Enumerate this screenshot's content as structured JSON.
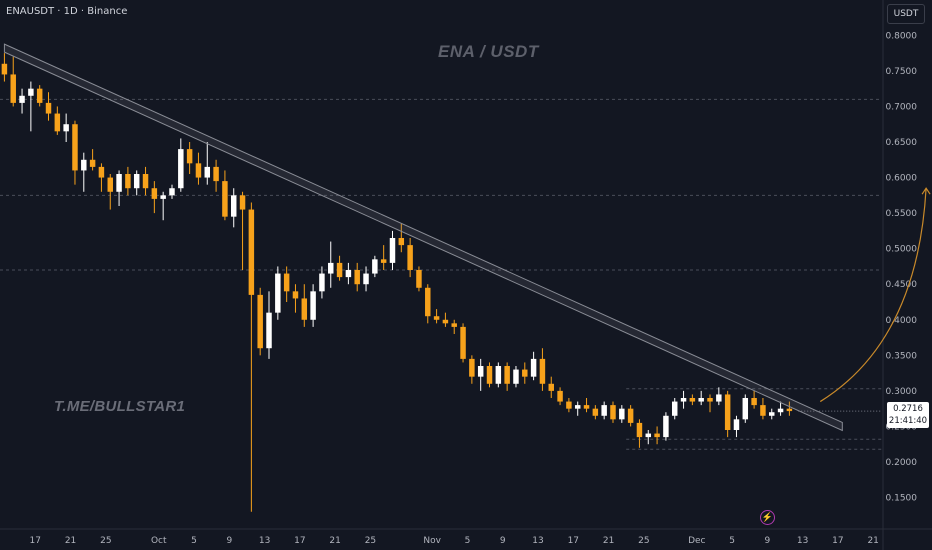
{
  "header": {
    "symbol_info": "ENAUSDT · 1D · Binance",
    "currency": "USDT"
  },
  "chart_title": "ENA / USDT",
  "watermark": "T.ME/BULLSTAR1",
  "price_label": {
    "price": "0.2716",
    "countdown": "21:41:40"
  },
  "colors": {
    "background": "#131722",
    "up": "#ffffff",
    "down": "#f7a21b",
    "grid": "#2a2e39",
    "trendline": "#5d606b",
    "arrow": "#c98a2a",
    "bolt": "#c94fd0"
  },
  "icons": {
    "event_marker": "lightning-bolt-icon"
  },
  "chart_data": {
    "type": "candlestick",
    "y_axis_ticks": [
      "0.8000",
      "0.7500",
      "0.7000",
      "0.6500",
      "0.6000",
      "0.5500",
      "0.5000",
      "0.4500",
      "0.4000",
      "0.3500",
      "0.3000",
      "0.2500",
      "0.2000",
      "0.1500"
    ],
    "ylim": [
      0.11,
      0.83
    ],
    "x_axis_ticks": [
      {
        "label": "17",
        "day": 17
      },
      {
        "label": "21",
        "day": 21
      },
      {
        "label": "25",
        "day": 25
      },
      {
        "label": "Oct",
        "day": 31
      },
      {
        "label": "5",
        "day": 35
      },
      {
        "label": "9",
        "day": 39
      },
      {
        "label": "13",
        "day": 43
      },
      {
        "label": "17",
        "day": 47
      },
      {
        "label": "21",
        "day": 51
      },
      {
        "label": "25",
        "day": 55
      },
      {
        "label": "Nov",
        "day": 62
      },
      {
        "label": "5",
        "day": 66
      },
      {
        "label": "9",
        "day": 70
      },
      {
        "label": "13",
        "day": 74
      },
      {
        "label": "17",
        "day": 78
      },
      {
        "label": "21",
        "day": 82
      },
      {
        "label": "25",
        "day": 86
      },
      {
        "label": "Dec",
        "day": 92
      },
      {
        "label": "5",
        "day": 96
      },
      {
        "label": "9",
        "day": 100
      },
      {
        "label": "13",
        "day": 104
      },
      {
        "label": "17",
        "day": 108
      },
      {
        "label": "21",
        "day": 112
      }
    ],
    "x_range_days": [
      13,
      113
    ],
    "candles": [
      [
        0.76,
        0.775,
        0.735,
        0.745
      ],
      [
        0.745,
        0.77,
        0.7,
        0.705
      ],
      [
        0.705,
        0.725,
        0.69,
        0.715
      ],
      [
        0.715,
        0.735,
        0.665,
        0.725
      ],
      [
        0.725,
        0.73,
        0.7,
        0.705
      ],
      [
        0.705,
        0.72,
        0.68,
        0.69
      ],
      [
        0.69,
        0.7,
        0.66,
        0.665
      ],
      [
        0.665,
        0.69,
        0.65,
        0.675
      ],
      [
        0.675,
        0.68,
        0.59,
        0.61
      ],
      [
        0.61,
        0.635,
        0.58,
        0.625
      ],
      [
        0.625,
        0.64,
        0.61,
        0.615
      ],
      [
        0.615,
        0.62,
        0.58,
        0.6
      ],
      [
        0.6,
        0.605,
        0.555,
        0.58
      ],
      [
        0.58,
        0.61,
        0.56,
        0.605
      ],
      [
        0.605,
        0.615,
        0.575,
        0.585
      ],
      [
        0.585,
        0.61,
        0.575,
        0.605
      ],
      [
        0.605,
        0.615,
        0.575,
        0.585
      ],
      [
        0.585,
        0.595,
        0.55,
        0.57
      ],
      [
        0.57,
        0.58,
        0.54,
        0.575
      ],
      [
        0.575,
        0.59,
        0.57,
        0.585
      ],
      [
        0.585,
        0.655,
        0.58,
        0.64
      ],
      [
        0.64,
        0.65,
        0.605,
        0.62
      ],
      [
        0.62,
        0.635,
        0.59,
        0.6
      ],
      [
        0.6,
        0.65,
        0.59,
        0.615
      ],
      [
        0.615,
        0.625,
        0.58,
        0.595
      ],
      [
        0.595,
        0.61,
        0.54,
        0.545
      ],
      [
        0.545,
        0.585,
        0.53,
        0.575
      ],
      [
        0.575,
        0.58,
        0.47,
        0.555
      ],
      [
        0.555,
        0.565,
        0.13,
        0.435
      ],
      [
        0.435,
        0.445,
        0.35,
        0.36
      ],
      [
        0.36,
        0.44,
        0.345,
        0.41
      ],
      [
        0.41,
        0.475,
        0.4,
        0.465
      ],
      [
        0.465,
        0.475,
        0.425,
        0.44
      ],
      [
        0.44,
        0.45,
        0.41,
        0.43
      ],
      [
        0.43,
        0.45,
        0.39,
        0.4
      ],
      [
        0.4,
        0.45,
        0.39,
        0.44
      ],
      [
        0.44,
        0.475,
        0.43,
        0.465
      ],
      [
        0.465,
        0.51,
        0.445,
        0.48
      ],
      [
        0.48,
        0.49,
        0.455,
        0.46
      ],
      [
        0.46,
        0.48,
        0.45,
        0.47
      ],
      [
        0.47,
        0.48,
        0.44,
        0.45
      ],
      [
        0.45,
        0.475,
        0.44,
        0.465
      ],
      [
        0.465,
        0.49,
        0.46,
        0.485
      ],
      [
        0.485,
        0.505,
        0.47,
        0.48
      ],
      [
        0.48,
        0.525,
        0.47,
        0.515
      ],
      [
        0.515,
        0.535,
        0.495,
        0.505
      ],
      [
        0.505,
        0.515,
        0.46,
        0.47
      ],
      [
        0.47,
        0.475,
        0.44,
        0.445
      ],
      [
        0.445,
        0.45,
        0.395,
        0.405
      ],
      [
        0.405,
        0.415,
        0.395,
        0.4
      ],
      [
        0.4,
        0.41,
        0.39,
        0.395
      ],
      [
        0.395,
        0.4,
        0.38,
        0.39
      ],
      [
        0.39,
        0.395,
        0.34,
        0.345
      ],
      [
        0.345,
        0.35,
        0.31,
        0.32
      ],
      [
        0.32,
        0.345,
        0.3,
        0.335
      ],
      [
        0.335,
        0.34,
        0.305,
        0.31
      ],
      [
        0.31,
        0.34,
        0.305,
        0.335
      ],
      [
        0.335,
        0.34,
        0.3,
        0.31
      ],
      [
        0.31,
        0.335,
        0.305,
        0.33
      ],
      [
        0.33,
        0.34,
        0.31,
        0.32
      ],
      [
        0.32,
        0.355,
        0.315,
        0.345
      ],
      [
        0.345,
        0.36,
        0.3,
        0.31
      ],
      [
        0.31,
        0.32,
        0.29,
        0.3
      ],
      [
        0.3,
        0.305,
        0.28,
        0.285
      ],
      [
        0.285,
        0.29,
        0.27,
        0.275
      ],
      [
        0.275,
        0.285,
        0.265,
        0.28
      ],
      [
        0.28,
        0.29,
        0.27,
        0.275
      ],
      [
        0.275,
        0.28,
        0.26,
        0.265
      ],
      [
        0.265,
        0.285,
        0.26,
        0.28
      ],
      [
        0.28,
        0.285,
        0.255,
        0.26
      ],
      [
        0.26,
        0.28,
        0.255,
        0.275
      ],
      [
        0.275,
        0.28,
        0.25,
        0.255
      ],
      [
        0.255,
        0.26,
        0.22,
        0.235
      ],
      [
        0.235,
        0.245,
        0.225,
        0.24
      ],
      [
        0.24,
        0.25,
        0.225,
        0.235
      ],
      [
        0.235,
        0.27,
        0.23,
        0.265
      ],
      [
        0.265,
        0.29,
        0.26,
        0.285
      ],
      [
        0.285,
        0.3,
        0.275,
        0.29
      ],
      [
        0.29,
        0.295,
        0.28,
        0.285
      ],
      [
        0.285,
        0.3,
        0.28,
        0.29
      ],
      [
        0.29,
        0.295,
        0.27,
        0.285
      ],
      [
        0.285,
        0.305,
        0.28,
        0.295
      ],
      [
        0.295,
        0.3,
        0.235,
        0.245
      ],
      [
        0.245,
        0.265,
        0.235,
        0.26
      ],
      [
        0.26,
        0.295,
        0.255,
        0.29
      ],
      [
        0.29,
        0.3,
        0.275,
        0.28
      ],
      [
        0.28,
        0.29,
        0.26,
        0.265
      ],
      [
        0.265,
        0.275,
        0.26,
        0.27
      ],
      [
        0.27,
        0.285,
        0.265,
        0.275
      ],
      [
        0.275,
        0.285,
        0.265,
        0.2716
      ]
    ],
    "horizontal_levels": [
      0.71,
      0.575,
      0.47,
      0.303,
      0.232,
      0.218
    ]
  }
}
